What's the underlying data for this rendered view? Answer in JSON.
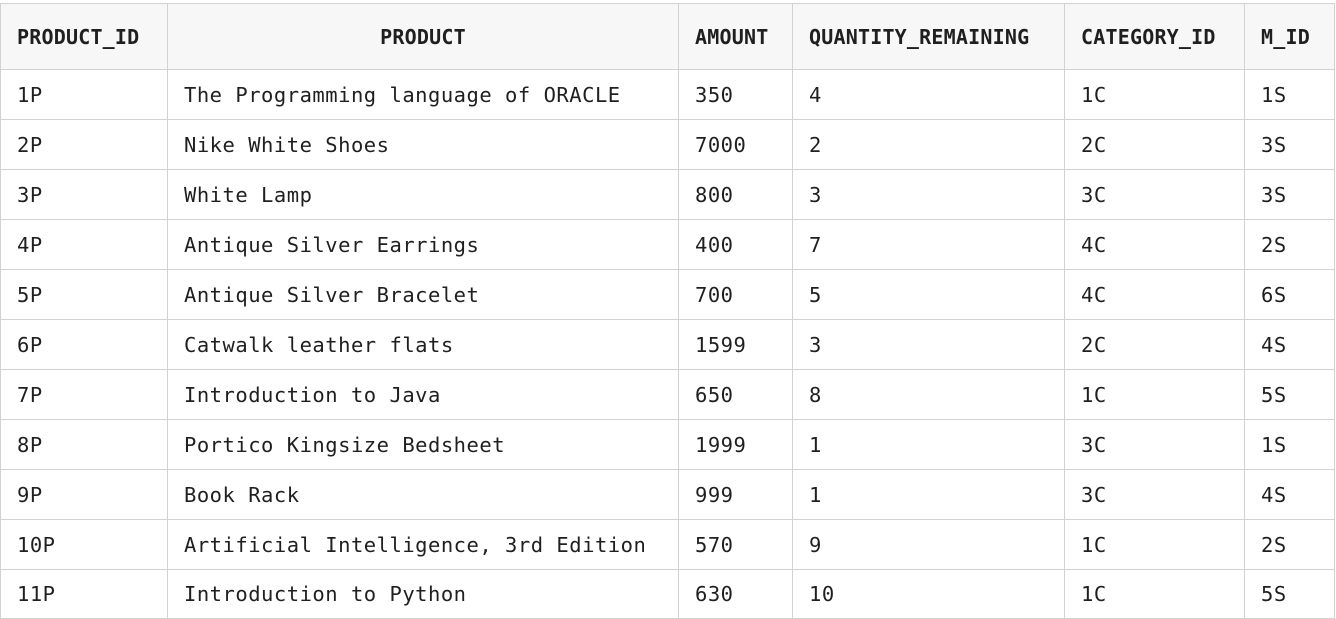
{
  "table": {
    "columns": [
      "PRODUCT_ID",
      "PRODUCT",
      "AMOUNT",
      "QUANTITY_REMAINING",
      "CATEGORY_ID",
      "M_ID"
    ],
    "rows": [
      [
        "1P",
        "The Programming language of ORACLE",
        "350",
        "4",
        "1C",
        "1S"
      ],
      [
        "2P",
        "Nike White Shoes",
        "7000",
        "2",
        "2C",
        "3S"
      ],
      [
        "3P",
        "White Lamp",
        "800",
        "3",
        "3C",
        "3S"
      ],
      [
        "4P",
        "Antique Silver Earrings",
        "400",
        "7",
        "4C",
        "2S"
      ],
      [
        "5P",
        "Antique Silver Bracelet",
        "700",
        "5",
        "4C",
        "6S"
      ],
      [
        "6P",
        "Catwalk leather flats",
        "1599",
        "3",
        "2C",
        "4S"
      ],
      [
        "7P",
        "Introduction to Java",
        "650",
        "8",
        "1C",
        "5S"
      ],
      [
        "8P",
        "Portico Kingsize Bedsheet",
        "1999",
        "1",
        "3C",
        "1S"
      ],
      [
        "9P",
        "Book Rack",
        "999",
        "1",
        "3C",
        "4S"
      ],
      [
        "10P",
        "Artificial Intelligence, 3rd Edition",
        "570",
        "9",
        "1C",
        "2S"
      ],
      [
        "11P",
        "Introduction to Python",
        "630",
        "10",
        "1C",
        "5S"
      ]
    ]
  }
}
